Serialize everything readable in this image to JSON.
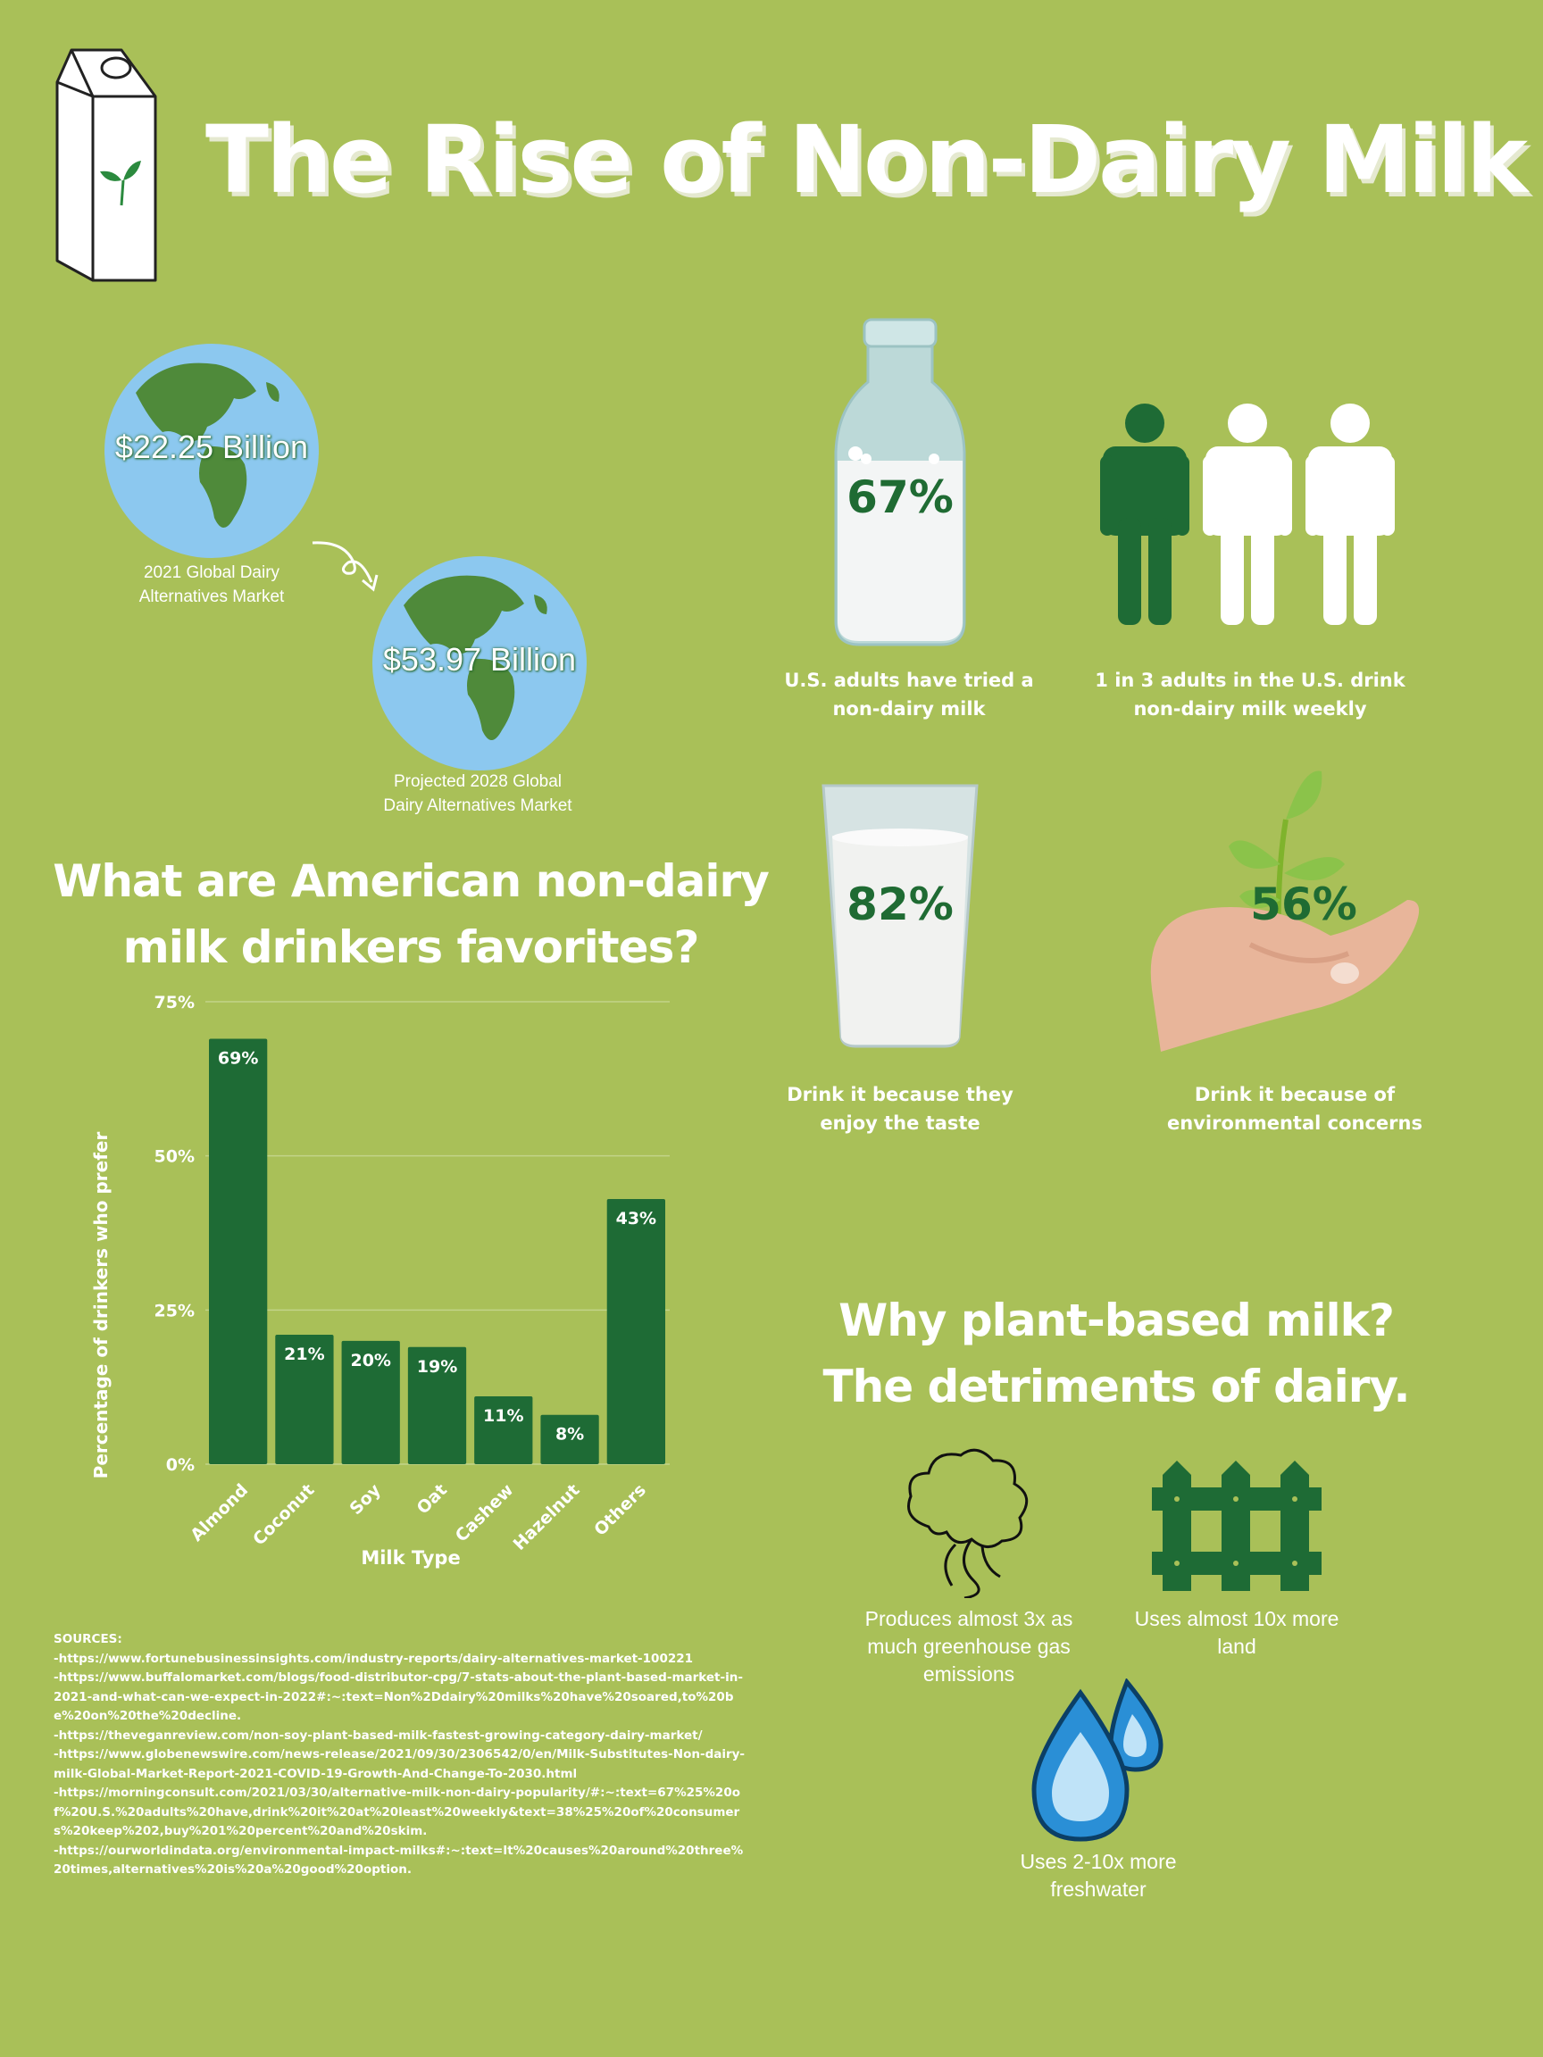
{
  "title": "The Rise of Non-Dairy Milk",
  "market": {
    "value_2021": "$22.25 Billion",
    "label_2021": [
      "2021 Global Dairy",
      "Alternatives Market"
    ],
    "value_2028": "$53.97 Billion",
    "label_2028": [
      "Projected 2028 Global",
      "Dairy Alternatives Market"
    ]
  },
  "stats": {
    "tried": {
      "pct": "67%",
      "caption": [
        "U.S. adults have tried a",
        "non-dairy milk"
      ]
    },
    "weekly": {
      "caption": [
        "1 in 3 adults in the U.S. drink",
        "non-dairy milk weekly"
      ]
    },
    "taste": {
      "pct": "82%",
      "caption": [
        "Drink it because they",
        "enjoy the taste"
      ]
    },
    "environment": {
      "pct": "56%",
      "caption": [
        "Drink it because of",
        "environmental concerns"
      ]
    }
  },
  "chart_heading": [
    "What are American non-dairy",
    "milk drinkers favorites?"
  ],
  "chart_data": {
    "type": "bar",
    "categories": [
      "Almond",
      "Coconut",
      "Soy",
      "Oat",
      "Cashew",
      "Hazelnut",
      "Others"
    ],
    "values": [
      69,
      21,
      20,
      19,
      11,
      8,
      43
    ],
    "value_labels": [
      "69%",
      "21%",
      "20%",
      "19%",
      "11%",
      "8%",
      "43%"
    ],
    "xlabel": "Milk Type",
    "ylabel": "Percentage of drinkers who prefer",
    "ylim": [
      0,
      75
    ],
    "yticks": [
      0,
      25,
      50,
      75
    ],
    "ytick_labels": [
      "0%",
      "25%",
      "50%",
      "75%"
    ],
    "grid": true,
    "bar_color": "#1e6b35"
  },
  "why_heading": [
    "Why plant-based milk?",
    "The detriments of dairy."
  ],
  "detriments": {
    "emissions": [
      "Produces almost 3x as",
      "much greenhouse gas",
      "emissions"
    ],
    "land": [
      "Uses almost 10x more",
      "land"
    ],
    "water": [
      "Uses 2-10x more",
      "freshwater"
    ]
  },
  "sources": {
    "heading": "SOURCES:",
    "lines": [
      "-https://www.fortunebusinessinsights.com/industry-reports/dairy-alternatives-market-100221",
      "-https://www.buffalomarket.com/blogs/food-distributor-cpg/7-stats-about-the-plant-based-market-in-2021-and-what-can-we-expect-in-2022#:~:text=Non%2Ddairy%20milks%20have%20soared,to%20be%20on%20the%20decline.",
      "-https://theveganreview.com/non-soy-plant-based-milk-fastest-growing-category-dairy-market/",
      "-https://www.globenewswire.com/news-release/2021/09/30/2306542/0/en/Milk-Substitutes-Non-dairy-milk-Global-Market-Report-2021-COVID-19-Growth-And-Change-To-2030.html",
      "-https://morningconsult.com/2021/03/30/alternative-milk-non-dairy-popularity/#:~:text=67%25%20of%20U.S.%20adults%20have,drink%20it%20at%20least%20weekly&text=38%25%20of%20consumers%20keep%202,buy%201%20percent%20and%20skim.",
      "-https://ourworldindata.org/environmental-impact-milks#:~:text=It%20causes%20around%20three%20times,alternatives%20is%20a%20good%20option."
    ]
  },
  "colors": {
    "background": "#a9c058",
    "dark_green": "#1e6b35",
    "ocean": "#8cc8ef",
    "land": "#4f8a3a"
  }
}
